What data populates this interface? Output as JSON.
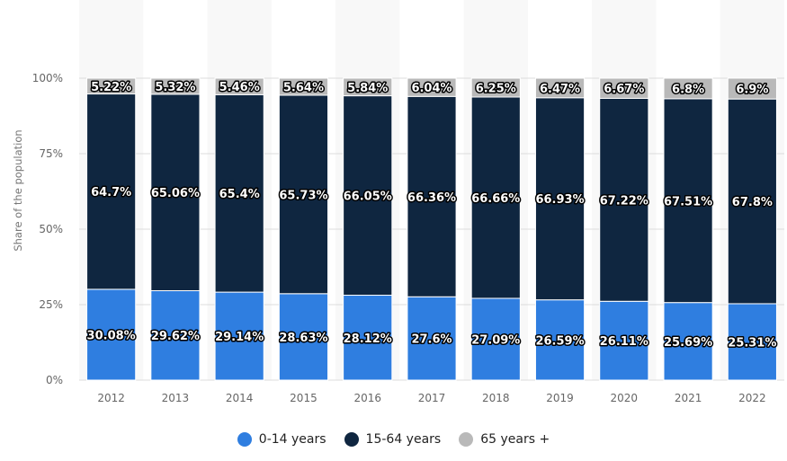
{
  "chart_data": {
    "type": "bar",
    "stacked": true,
    "categories": [
      "2012",
      "2013",
      "2014",
      "2015",
      "2016",
      "2017",
      "2018",
      "2019",
      "2020",
      "2021",
      "2022"
    ],
    "series": [
      {
        "name": "0-14 years",
        "color": "#2f7ee0",
        "values": [
          30.08,
          29.62,
          29.14,
          28.63,
          28.12,
          27.6,
          27.09,
          26.59,
          26.11,
          25.69,
          25.31
        ],
        "labels": [
          "30.08%",
          "29.62%",
          "29.14%",
          "28.63%",
          "28.12%",
          "27.6%",
          "27.09%",
          "26.59%",
          "26.11%",
          "25.69%",
          "25.31%"
        ]
      },
      {
        "name": "15-64 years",
        "color": "#0f2640",
        "values": [
          64.7,
          65.06,
          65.4,
          65.73,
          66.05,
          66.36,
          66.66,
          66.93,
          67.22,
          67.51,
          67.8
        ],
        "labels": [
          "64.7%",
          "65.06%",
          "65.4%",
          "65.73%",
          "66.05%",
          "66.36%",
          "66.66%",
          "66.93%",
          "67.22%",
          "67.51%",
          "67.8%"
        ]
      },
      {
        "name": "65 years +",
        "color": "#b9b9b9",
        "values": [
          5.22,
          5.32,
          5.46,
          5.64,
          5.84,
          6.04,
          6.25,
          6.47,
          6.67,
          6.8,
          6.9
        ],
        "labels": [
          "5.22%",
          "5.32%",
          "5.46%",
          "5.64%",
          "5.84%",
          "6.04%",
          "6.25%",
          "6.47%",
          "6.67%",
          "6.8%",
          "6.9%"
        ]
      }
    ],
    "ylabel": "Share of the population",
    "ylim": [
      0,
      100
    ],
    "yticks": [
      0,
      25,
      50,
      75,
      100
    ],
    "ytick_labels": [
      "0%",
      "25%",
      "50%",
      "75%",
      "100%"
    ],
    "grid": true,
    "legend_position": "bottom"
  }
}
